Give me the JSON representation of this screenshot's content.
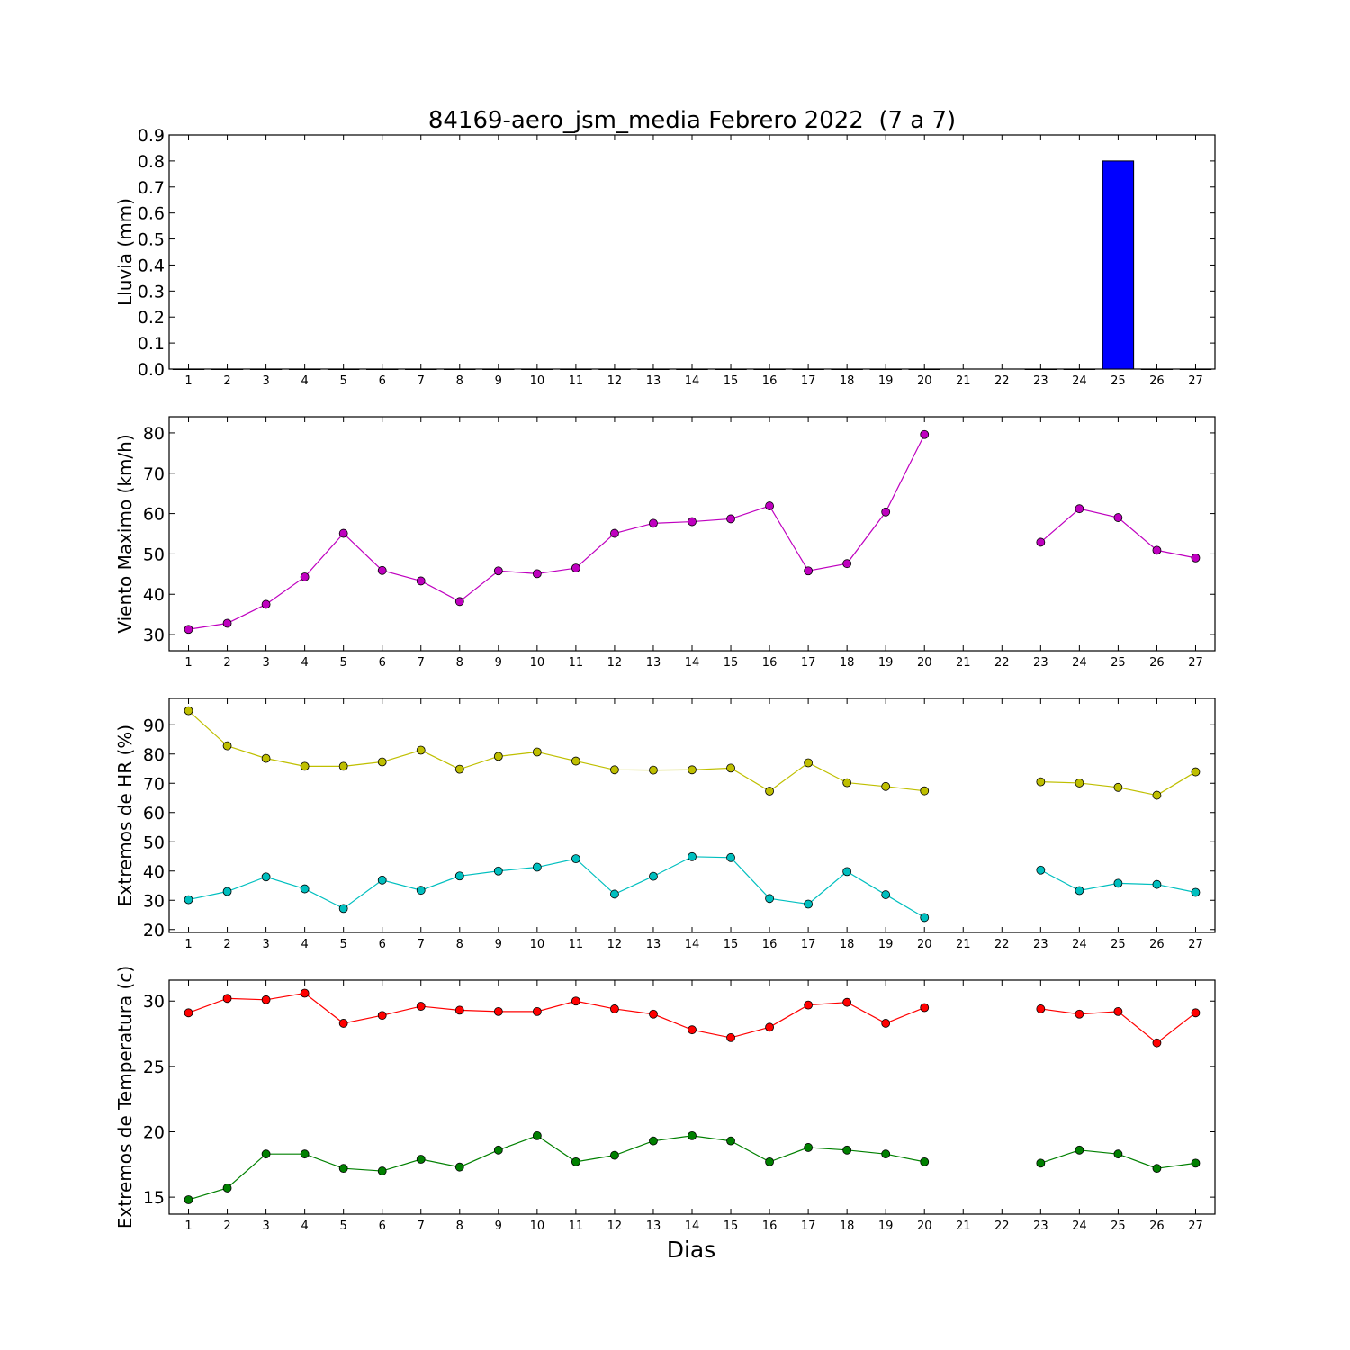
{
  "figure": {
    "title": "84169-aero_jsm_media Febrero 2022  (7 a 7)",
    "xlabel": "Dias"
  },
  "chart_data": [
    {
      "type": "bar",
      "ylabel": "Lluvia (mm)",
      "ylim": [
        0,
        0.9
      ],
      "yticks": [
        "0.0",
        "0.1",
        "0.2",
        "0.3",
        "0.4",
        "0.5",
        "0.6",
        "0.7",
        "0.8",
        "0.9"
      ],
      "x": [
        1,
        2,
        3,
        4,
        5,
        6,
        7,
        8,
        9,
        10,
        11,
        12,
        13,
        14,
        15,
        16,
        17,
        18,
        19,
        20,
        21,
        22,
        23,
        24,
        25,
        26,
        27
      ],
      "xlim": [
        0.5,
        27.5
      ],
      "series": [
        {
          "color": "#0000ff",
          "values": [
            0,
            0,
            0,
            0,
            0,
            0,
            0,
            0,
            0,
            0,
            0,
            0,
            0,
            0,
            0,
            0,
            0,
            0,
            0,
            0,
            null,
            null,
            0,
            0,
            0.8,
            0,
            0
          ]
        }
      ]
    },
    {
      "type": "line",
      "ylabel": "Viento Maximo (km/h)",
      "ylim": [
        26,
        84
      ],
      "yticks": [
        "30",
        "40",
        "50",
        "60",
        "70",
        "80"
      ],
      "x": [
        1,
        2,
        3,
        4,
        5,
        6,
        7,
        8,
        9,
        10,
        11,
        12,
        13,
        14,
        15,
        16,
        17,
        18,
        19,
        20,
        21,
        22,
        23,
        24,
        25,
        26,
        27
      ],
      "xlim": [
        0.5,
        27.5
      ],
      "series": [
        {
          "color": "#bf00bf",
          "values": [
            31.3,
            32.8,
            37.5,
            44.3,
            55.1,
            45.9,
            43.3,
            38.2,
            45.8,
            45.1,
            46.5,
            55.1,
            57.6,
            58.0,
            58.7,
            61.9,
            45.8,
            47.6,
            60.4,
            79.6,
            null,
            null,
            52.9,
            61.2,
            59.0,
            50.9,
            49.0
          ]
        }
      ]
    },
    {
      "type": "line",
      "ylabel": "Extremos de HR (%)",
      "ylim": [
        19,
        99
      ],
      "yticks": [
        "20",
        "30",
        "40",
        "50",
        "60",
        "70",
        "80",
        "90"
      ],
      "x": [
        1,
        2,
        3,
        4,
        5,
        6,
        7,
        8,
        9,
        10,
        11,
        12,
        13,
        14,
        15,
        16,
        17,
        18,
        19,
        20,
        21,
        22,
        23,
        24,
        25,
        26,
        27
      ],
      "xlim": [
        0.5,
        27.5
      ],
      "series": [
        {
          "color": "#bfbf00",
          "values": [
            94.8,
            82.8,
            78.5,
            75.8,
            75.8,
            77.3,
            81.3,
            74.8,
            79.2,
            80.7,
            77.6,
            74.6,
            74.5,
            74.6,
            75.2,
            67.3,
            77.0,
            70.2,
            68.9,
            67.4,
            null,
            null,
            70.5,
            70.1,
            68.6,
            65.9,
            73.9
          ]
        },
        {
          "color": "#00bfbf",
          "values": [
            30.2,
            33.0,
            38.0,
            33.9,
            27.2,
            36.9,
            33.4,
            38.3,
            40.0,
            41.3,
            44.2,
            32.1,
            38.2,
            44.9,
            44.6,
            30.6,
            28.7,
            39.8,
            31.9,
            24.1,
            null,
            null,
            40.3,
            33.3,
            35.8,
            35.4,
            32.7
          ]
        }
      ]
    },
    {
      "type": "line",
      "ylabel": "Extremos de Temperatura (c)",
      "ylim": [
        13.7,
        31.6
      ],
      "yticks": [
        "15",
        "20",
        "25",
        "30"
      ],
      "x": [
        1,
        2,
        3,
        4,
        5,
        6,
        7,
        8,
        9,
        10,
        11,
        12,
        13,
        14,
        15,
        16,
        17,
        18,
        19,
        20,
        21,
        22,
        23,
        24,
        25,
        26,
        27
      ],
      "xlim": [
        0.5,
        27.5
      ],
      "series": [
        {
          "color": "#ff0000",
          "values": [
            29.1,
            30.2,
            30.1,
            30.6,
            28.3,
            28.9,
            29.6,
            29.3,
            29.2,
            29.2,
            30.0,
            29.4,
            29.0,
            27.8,
            27.2,
            28.0,
            29.7,
            29.9,
            28.3,
            29.5,
            null,
            null,
            29.4,
            29.0,
            29.2,
            26.8,
            29.1
          ]
        },
        {
          "color": "#008000",
          "values": [
            14.8,
            15.7,
            18.3,
            18.3,
            17.2,
            17.0,
            17.9,
            17.3,
            18.6,
            19.7,
            17.7,
            18.2,
            19.3,
            19.7,
            19.3,
            17.7,
            18.8,
            18.6,
            18.3,
            17.7,
            null,
            null,
            17.6,
            18.6,
            18.3,
            17.2,
            17.6
          ]
        }
      ]
    }
  ]
}
